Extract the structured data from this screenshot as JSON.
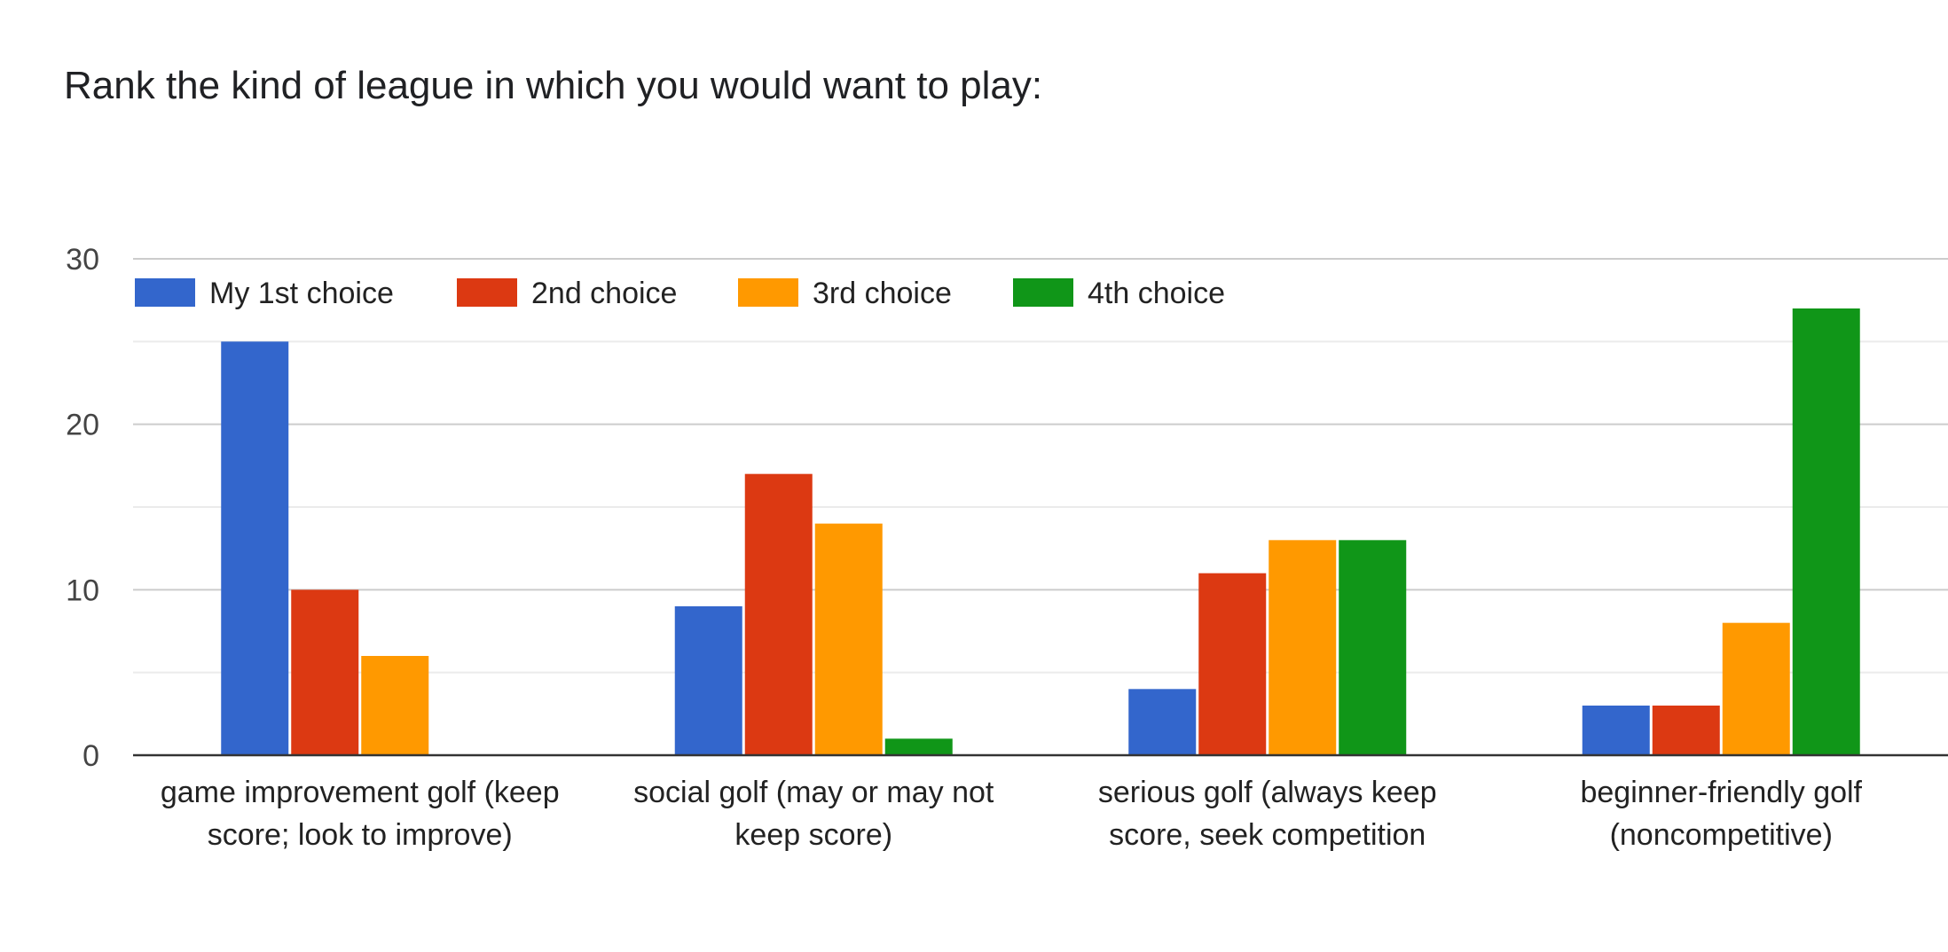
{
  "chart_data": {
    "type": "bar",
    "title": "Rank the kind of league in which you would want to play:",
    "xlabel": "",
    "ylabel": "",
    "ylim": [
      0,
      30
    ],
    "yticks": [
      0,
      10,
      20,
      30
    ],
    "grid": true,
    "legend_position": "top-left",
    "categories": [
      [
        "game improvement golf (keep",
        "score; look to improve)"
      ],
      [
        "social golf (may or may not",
        "keep score)"
      ],
      [
        "serious golf (always keep",
        "score, seek competition"
      ],
      [
        "beginner-friendly golf",
        "(noncompetitive)"
      ]
    ],
    "series": [
      {
        "name": "My 1st choice",
        "color": "#3366cc",
        "values": [
          25,
          9,
          4,
          3
        ]
      },
      {
        "name": "2nd choice",
        "color": "#dc3912",
        "values": [
          10,
          17,
          11,
          3
        ]
      },
      {
        "name": "3rd choice",
        "color": "#ff9900",
        "values": [
          6,
          14,
          13,
          8
        ]
      },
      {
        "name": "4th choice",
        "color": "#109618",
        "values": [
          0,
          1,
          13,
          27
        ]
      }
    ]
  }
}
